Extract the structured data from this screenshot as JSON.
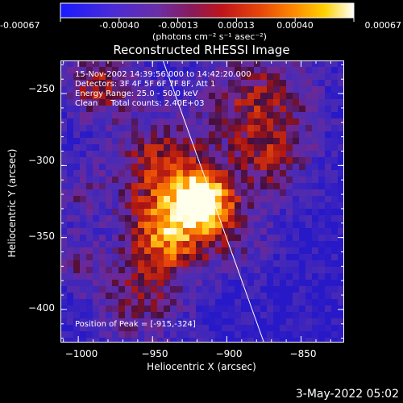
{
  "colorbar": {
    "tick_labels": [
      "-0.00067",
      "-0.00040",
      "-0.00013",
      "0.00013",
      "0.00040",
      "0.00067"
    ],
    "range": [
      -0.00067,
      0.00067
    ],
    "units_line": "(photons cm⁻² s⁻¹ asec⁻²)"
  },
  "chart_data": {
    "type": "heatmap",
    "title": "Reconstructed RHESSI Image",
    "xlabel": "Heliocentric X (arcsec)",
    "ylabel": "Heliocentric Y (arcsec)",
    "xlim": [
      -1012,
      -821
    ],
    "ylim": [
      -423,
      -227
    ],
    "x_ticks": [
      -1000,
      -950,
      -900,
      -850
    ],
    "y_ticks": [
      -400,
      -350,
      -300,
      -250
    ],
    "x_tick_labels": [
      "−1000",
      "−950",
      "−900",
      "−850"
    ],
    "y_tick_labels": [
      "−400",
      "−350",
      "−300",
      "−250"
    ],
    "annotations": [
      "15-Nov-2002 14:39:56.000 to 14:42:20.000",
      "Detectors: 3F 4F 5F 6F 7F 8F, Att 1",
      "Energy Range: 25.0 - 50.0 keV",
      "Clean     Total counts: 2.40E+03",
      "Position of Peak = [-915,-324]"
    ],
    "peak": {
      "x": -915,
      "y": -324
    },
    "limb_line": [
      {
        "x": -943,
        "y": -227
      },
      {
        "x": -875,
        "y": -423
      }
    ]
  },
  "footer": {
    "date": "3-May-2022 05:02"
  }
}
